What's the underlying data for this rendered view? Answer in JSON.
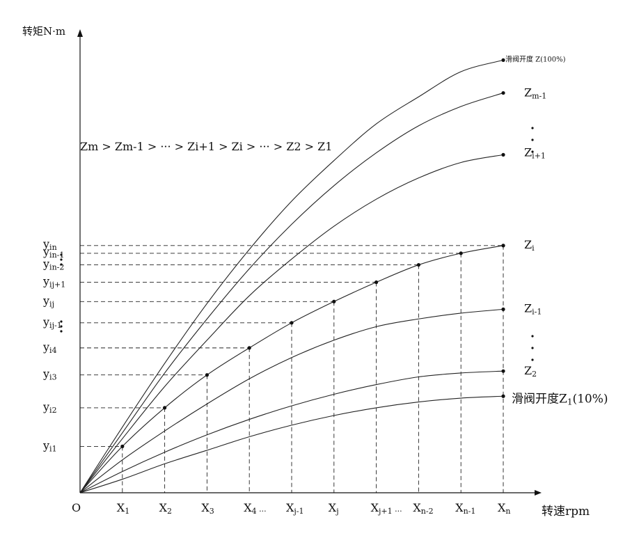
{
  "chart_data": {
    "type": "line",
    "y_axis_label": "转矩N·m",
    "x_axis_label": "转速rpm",
    "origin_label": "O",
    "inequality_text": "Zm > Zm-1 > ··· > Zi+1 > Zi > ··· > Z2 > Z1",
    "x_ticks": [
      {
        "main": "X",
        "sub": "1"
      },
      {
        "main": "X",
        "sub": "2"
      },
      {
        "main": "X",
        "sub": "3"
      },
      {
        "main": "X",
        "sub": "4 ···"
      },
      {
        "main": "X",
        "sub": "j-1"
      },
      {
        "main": "X",
        "sub": "j"
      },
      {
        "main": "X",
        "sub": "j+1 ··· "
      },
      {
        "main": "X",
        "sub": "n-2"
      },
      {
        "main": "X",
        "sub": "n-1"
      },
      {
        "main": "X",
        "sub": "n"
      }
    ],
    "y_ticks": [
      {
        "main": "y",
        "sub": "in",
        "value": 6.4
      },
      {
        "main": "y",
        "sub": "in-1",
        "value": 6.2
      },
      {
        "main": "y",
        "sub": "in-2",
        "value": 5.9
      },
      {
        "main": "y",
        "sub": "ij+1",
        "value": 5.45
      },
      {
        "main": "y",
        "sub": "ij",
        "value": 4.95
      },
      {
        "main": "y",
        "sub": "ij-1",
        "value": 4.4
      },
      {
        "main": "y",
        "sub": "i4",
        "value": 3.75
      },
      {
        "main": "y",
        "sub": "i3",
        "value": 3.05
      },
      {
        "main": "y",
        "sub": "i2",
        "value": 2.2
      },
      {
        "main": "y",
        "sub": "i1",
        "value": 1.2
      }
    ],
    "x_range": [
      0,
      10
    ],
    "y_range": [
      0,
      11
    ],
    "series": [
      {
        "name": "滑阀开度 Z(100%)",
        "label_main": "滑阀开度 Z(100%)",
        "label_sub": "",
        "points": [
          [
            0,
            0
          ],
          [
            1,
            1.7
          ],
          [
            2,
            3.35
          ],
          [
            3,
            4.9
          ],
          [
            4,
            6.3
          ],
          [
            5,
            7.55
          ],
          [
            6,
            8.6
          ],
          [
            7,
            9.55
          ],
          [
            8,
            10.25
          ],
          [
            9,
            10.9
          ],
          [
            10,
            11.2
          ]
        ]
      },
      {
        "name": "Zm-1",
        "label_main": "Z",
        "label_sub": "m-1",
        "points": [
          [
            0,
            0
          ],
          [
            1,
            1.55
          ],
          [
            2,
            3.1
          ],
          [
            3,
            4.5
          ],
          [
            4,
            5.8
          ],
          [
            5,
            6.95
          ],
          [
            6,
            7.95
          ],
          [
            7,
            8.8
          ],
          [
            8,
            9.5
          ],
          [
            9,
            10.0
          ],
          [
            10,
            10.35
          ]
        ]
      },
      {
        "name": "Zi+1",
        "label_main": "Z",
        "label_sub": "i+1",
        "points": [
          [
            0,
            0
          ],
          [
            1,
            1.4
          ],
          [
            2,
            2.75
          ],
          [
            3,
            3.95
          ],
          [
            4,
            5.1
          ],
          [
            5,
            6.05
          ],
          [
            6,
            6.9
          ],
          [
            7,
            7.6
          ],
          [
            8,
            8.15
          ],
          [
            9,
            8.55
          ],
          [
            10,
            8.75
          ]
        ]
      },
      {
        "name": "Zi",
        "label_main": "Z",
        "label_sub": "i",
        "points": [
          [
            0,
            0
          ],
          [
            1,
            1.2
          ],
          [
            2,
            2.2
          ],
          [
            3,
            3.05
          ],
          [
            4,
            3.75
          ],
          [
            5,
            4.4
          ],
          [
            6,
            4.95
          ],
          [
            7,
            5.45
          ],
          [
            8,
            5.9
          ],
          [
            9,
            6.2
          ],
          [
            10,
            6.4
          ]
        ]
      },
      {
        "name": "Zi-1",
        "label_main": "Z",
        "label_sub": "i-1",
        "points": [
          [
            0,
            0
          ],
          [
            1,
            0.85
          ],
          [
            2,
            1.6
          ],
          [
            3,
            2.3
          ],
          [
            4,
            2.95
          ],
          [
            5,
            3.5
          ],
          [
            6,
            3.95
          ],
          [
            7,
            4.3
          ],
          [
            8,
            4.5
          ],
          [
            9,
            4.65
          ],
          [
            10,
            4.75
          ]
        ]
      },
      {
        "name": "Z2",
        "label_main": "Z",
        "label_sub": "2",
        "points": [
          [
            0,
            0
          ],
          [
            1,
            0.55
          ],
          [
            2,
            1.05
          ],
          [
            3,
            1.5
          ],
          [
            4,
            1.9
          ],
          [
            5,
            2.25
          ],
          [
            6,
            2.55
          ],
          [
            7,
            2.8
          ],
          [
            8,
            3.0
          ],
          [
            9,
            3.1
          ],
          [
            10,
            3.15
          ]
        ]
      },
      {
        "name": "滑阀开度Z1(10%)",
        "label_main": "滑阀开度Z",
        "label_sub": "1",
        "label_tail": "(10%)",
        "points": [
          [
            0,
            0
          ],
          [
            1,
            0.35
          ],
          [
            2,
            0.75
          ],
          [
            3,
            1.1
          ],
          [
            4,
            1.45
          ],
          [
            5,
            1.75
          ],
          [
            6,
            2.0
          ],
          [
            7,
            2.2
          ],
          [
            8,
            2.35
          ],
          [
            9,
            2.45
          ],
          [
            10,
            2.5
          ]
        ]
      }
    ],
    "vertical_dots_1": "·",
    "vertical_dots_2": "·",
    "grid": false,
    "legend": "inline labels at right end of curves"
  }
}
